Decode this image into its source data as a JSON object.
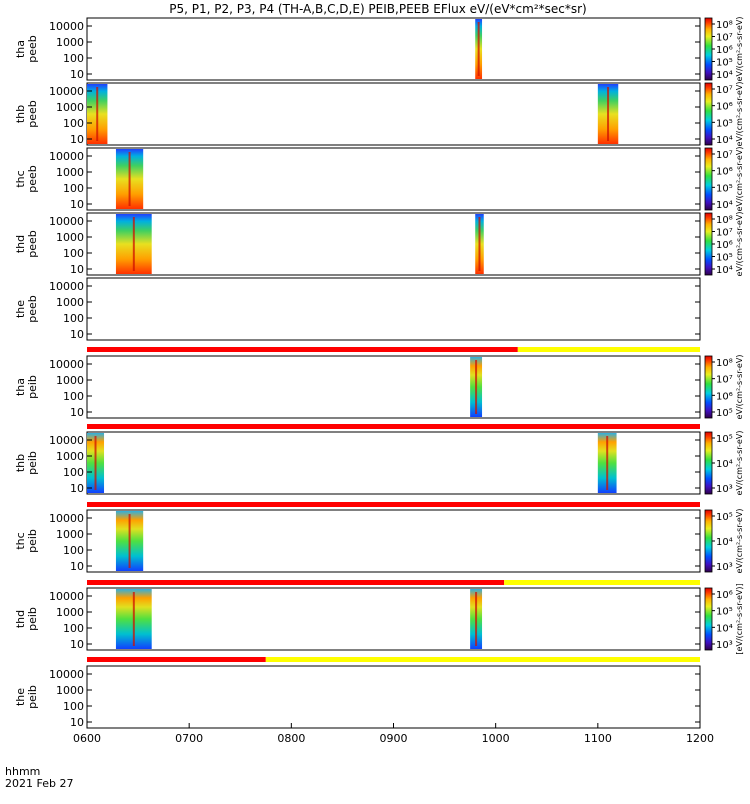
{
  "title": "P5, P1, P2, P3, P4 (TH-A,B,C,D,E) PEIB,PEEB EFlux eV/(eV*cm²*sec*sr)",
  "x_axis": {
    "ticks": [
      "0600",
      "0700",
      "0800",
      "0900",
      "1000",
      "1100",
      "1200"
    ],
    "row_label_1": "hhmm",
    "row_label_2": "2021 Feb 27"
  },
  "colors": {
    "bar_red": "#ff0000",
    "bar_yellow": "#ffff00",
    "frame": "#000000",
    "background": "#ffffff"
  },
  "chart_data": {
    "type": "heatmap",
    "x_range_hhmm": [
      "0600",
      "1200"
    ],
    "y_scale": "log",
    "y_ticks": [
      "10",
      "100",
      "1000",
      "10000"
    ],
    "panels": [
      {
        "probe": "tha",
        "product": "peeb",
        "ylabel": "tha\npeeb",
        "data_intervals": [
          [
            "0948",
            "0952"
          ]
        ],
        "colorbar": {
          "ticks": [
            "10⁴",
            "10⁵",
            "10⁶",
            "10⁷",
            "10⁸"
          ],
          "label": "eV/(cm²-s-sr-eV)"
        }
      },
      {
        "probe": "thb",
        "product": "peeb",
        "ylabel": "thb\npeeb",
        "data_intervals": [
          [
            "0600",
            "0612"
          ],
          [
            "1100",
            "1112"
          ]
        ],
        "colorbar": {
          "ticks": [
            "10⁴",
            "10⁵",
            "10⁶",
            "10⁷"
          ],
          "label": "eV/(cm²-s-sr-eV)"
        }
      },
      {
        "probe": "thc",
        "product": "peeb",
        "ylabel": "thc\npeeb",
        "data_intervals": [
          [
            "0617",
            "0633"
          ]
        ],
        "colorbar": {
          "ticks": [
            "10⁴",
            "10⁵",
            "10⁶",
            "10⁷"
          ],
          "label": "eV/(cm²-s-sr-eV)"
        }
      },
      {
        "probe": "thd",
        "product": "peeb",
        "ylabel": "thd\npeeb",
        "data_intervals": [
          [
            "0617",
            "0638"
          ],
          [
            "0948",
            "0953"
          ]
        ],
        "colorbar": {
          "ticks": [
            "10⁴",
            "10⁵",
            "10⁶",
            "10⁷",
            "10⁸"
          ],
          "label": "eV/(cm²-s-sr-eV)"
        }
      },
      {
        "probe": "the",
        "product": "peeb",
        "ylabel": "the\npeeb",
        "data_intervals": []
      },
      {
        "probe": "tha",
        "product": "peib",
        "ylabel": "tha\npeib",
        "data_intervals": [
          [
            "0945",
            "0952"
          ]
        ],
        "colorbar": {
          "ticks": [
            "10⁵",
            "10⁶",
            "10⁷",
            "10⁸"
          ],
          "label": "eV/(cm²-s-sr-eV)"
        }
      },
      {
        "probe": "thb",
        "product": "peib",
        "ylabel": "thb\npeib",
        "data_intervals": [
          [
            "0600",
            "0610"
          ],
          [
            "1100",
            "1111"
          ]
        ],
        "colorbar": {
          "ticks": [
            "10³",
            "10⁴",
            "10⁵"
          ],
          "label": "eV/(cm²-s-sr-eV)"
        }
      },
      {
        "probe": "thc",
        "product": "peib",
        "ylabel": "thc\npeib",
        "data_intervals": [
          [
            "0617",
            "0633"
          ]
        ],
        "colorbar": {
          "ticks": [
            "10³",
            "10⁴",
            "10⁵"
          ],
          "label": "eV/(cm²-s-sr-eV)"
        }
      },
      {
        "probe": "thd",
        "product": "peib",
        "ylabel": "thd\npeib",
        "data_intervals": [
          [
            "0617",
            "0638"
          ],
          [
            "0945",
            "0952"
          ]
        ],
        "colorbar": {
          "ticks": [
            "10³",
            "10⁴",
            "10⁵",
            "10⁶"
          ],
          "label": "[eV/(cm²-s-sr-eV)]"
        }
      },
      {
        "probe": "the",
        "product": "peib",
        "ylabel": "the\npeib",
        "data_intervals": []
      }
    ],
    "status_bars": [
      {
        "after_panel": "the peeb",
        "red_until": "1013",
        "then": "yellow"
      },
      {
        "after_panel": "tha peib",
        "red_until": "1200",
        "then": "yellow"
      },
      {
        "after_panel": "thb peib",
        "red_until": "1200",
        "then": "yellow"
      },
      {
        "after_panel": "thc peib",
        "red_until": "1005",
        "then": "yellow"
      },
      {
        "after_panel": "thd peib",
        "red_until": "0745",
        "then": "yellow"
      }
    ]
  }
}
